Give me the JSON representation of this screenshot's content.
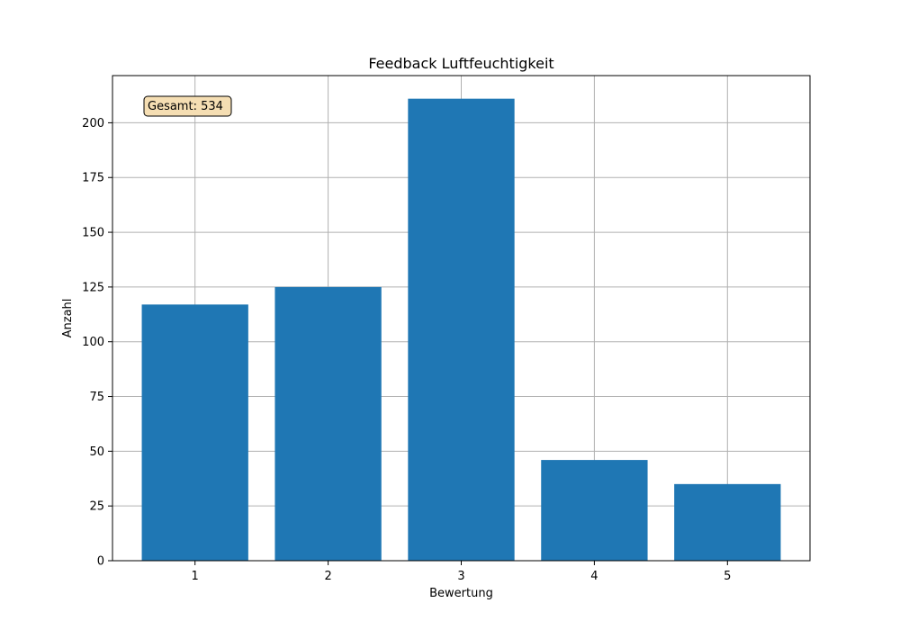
{
  "chart_data": {
    "type": "bar",
    "title": "Feedback Luftfeuchtigkeit",
    "xlabel": "Bewertung",
    "ylabel": "Anzahl",
    "categories": [
      "1",
      "2",
      "3",
      "4",
      "5"
    ],
    "values": [
      117,
      125,
      211,
      46,
      35
    ],
    "ylim": [
      0,
      221.55
    ],
    "yticks": [
      "0",
      "25",
      "50",
      "75",
      "100",
      "125",
      "150",
      "175",
      "200"
    ],
    "grid": true,
    "bar_color": "#1f77b4",
    "annotation": {
      "text": "Gesamt: 534",
      "position": "top-left",
      "background": "#f5deb3"
    }
  }
}
